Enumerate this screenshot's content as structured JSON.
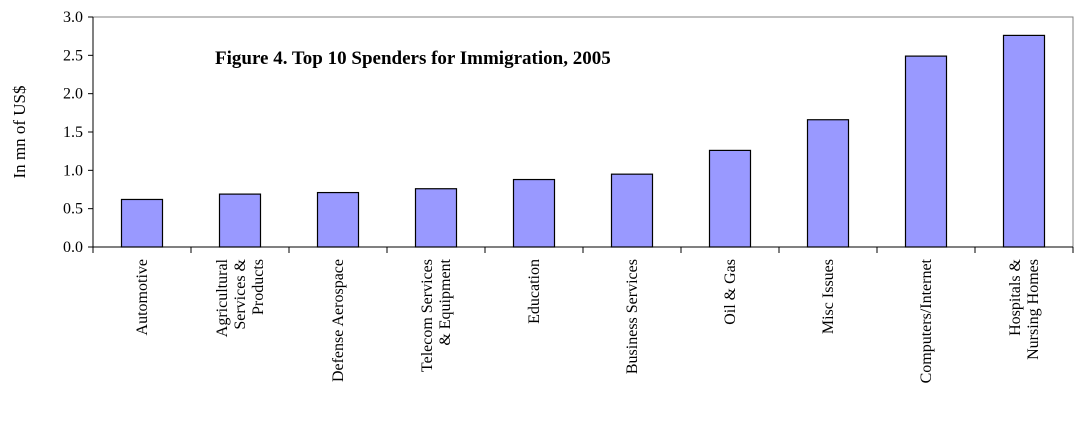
{
  "chart_data": {
    "type": "bar",
    "title": "Figure 4. Top 10 Spenders for Immigration, 2005",
    "xlabel": "",
    "ylabel": "In mn of US$",
    "ylim": [
      0,
      3.0
    ],
    "yticks": [
      "0.0",
      "0.5",
      "1.0",
      "1.5",
      "2.0",
      "2.5",
      "3.0"
    ],
    "grid": false,
    "bar_color": "#9999ff",
    "categories": [
      [
        "Automotive"
      ],
      [
        "Agricultural",
        "Services &",
        "Products"
      ],
      [
        "Defense Aerospace"
      ],
      [
        "Telecom Services",
        "& Equipment"
      ],
      [
        "Education"
      ],
      [
        "Business Services"
      ],
      [
        "Oil & Gas"
      ],
      [
        "Misc Issues"
      ],
      [
        "Computers/Internet"
      ],
      [
        "Hospitals &",
        "Nursing Homes"
      ]
    ],
    "values": [
      0.62,
      0.69,
      0.71,
      0.76,
      0.88,
      0.95,
      1.26,
      1.66,
      2.49,
      2.76
    ]
  }
}
